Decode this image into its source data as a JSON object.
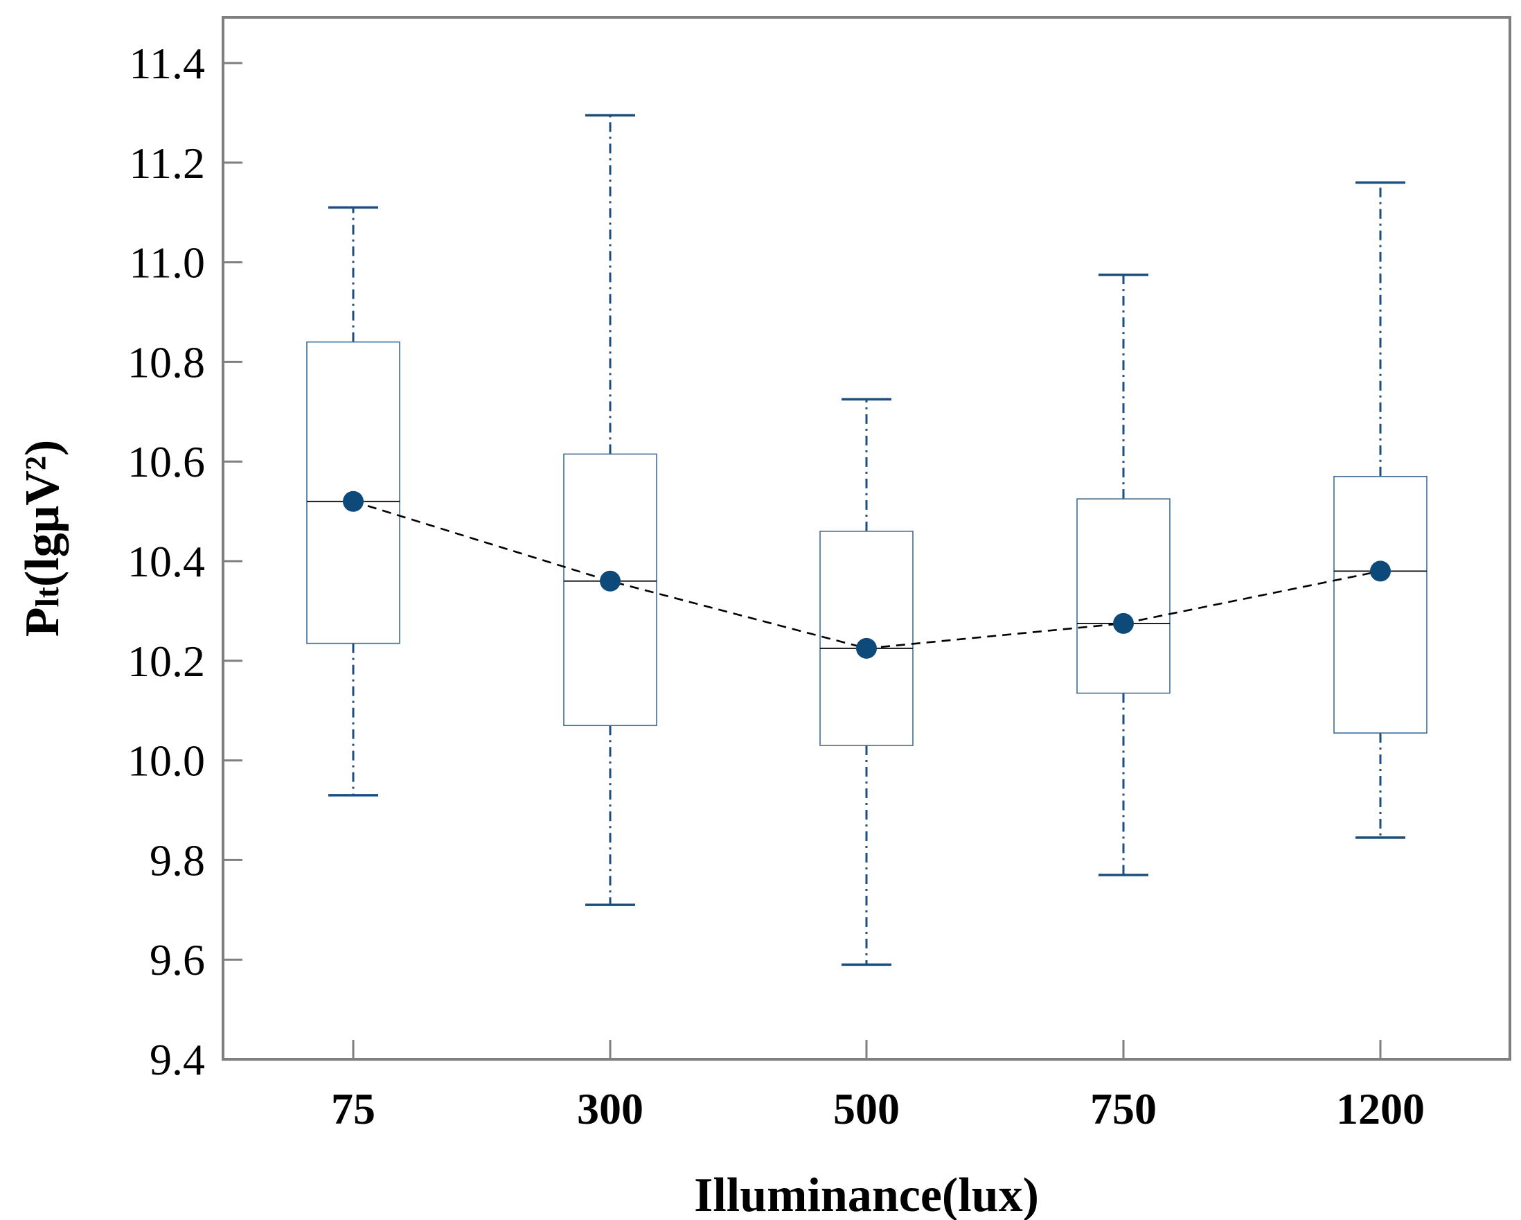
{
  "chart_data": {
    "type": "box",
    "title": "",
    "xlabel": "Illuminance(lux)",
    "ylabel": {
      "main": "P",
      "sub": "lt",
      "rest": "(lgμV²)"
    },
    "categories": [
      "75",
      "300",
      "500",
      "750",
      "1200"
    ],
    "ylim": [
      9.4,
      11.5
    ],
    "yticks": [
      "9.4",
      "9.6",
      "9.8",
      "10.0",
      "10.2",
      "10.4",
      "10.6",
      "10.8",
      "11.0",
      "11.2",
      "11.4"
    ],
    "grid": false,
    "boxes": [
      {
        "category": "75",
        "whisker_low": 9.93,
        "q1": 10.235,
        "median": 10.52,
        "q3": 10.84,
        "whisker_high": 11.11
      },
      {
        "category": "300",
        "whisker_low": 9.71,
        "q1": 10.07,
        "median": 10.36,
        "q3": 10.615,
        "whisker_high": 11.295
      },
      {
        "category": "500",
        "whisker_low": 9.59,
        "q1": 10.03,
        "median": 10.225,
        "q3": 10.46,
        "whisker_high": 10.725
      },
      {
        "category": "750",
        "whisker_low": 9.77,
        "q1": 10.135,
        "median": 10.275,
        "q3": 10.525,
        "whisker_high": 10.975
      },
      {
        "category": "1200",
        "whisker_low": 9.845,
        "q1": 10.055,
        "median": 10.38,
        "q3": 10.57,
        "whisker_high": 11.16
      }
    ],
    "mean_line": {
      "values": [
        10.52,
        10.36,
        10.225,
        10.275,
        10.38
      ],
      "style": "dashed"
    },
    "colors": {
      "box_edge": "#3d6e99",
      "whisker": "#1b4e7e",
      "mean_marker": "#0d4a7a",
      "median": "#000000",
      "mean_line": "#000000",
      "frame": "#7f7f7f"
    }
  }
}
